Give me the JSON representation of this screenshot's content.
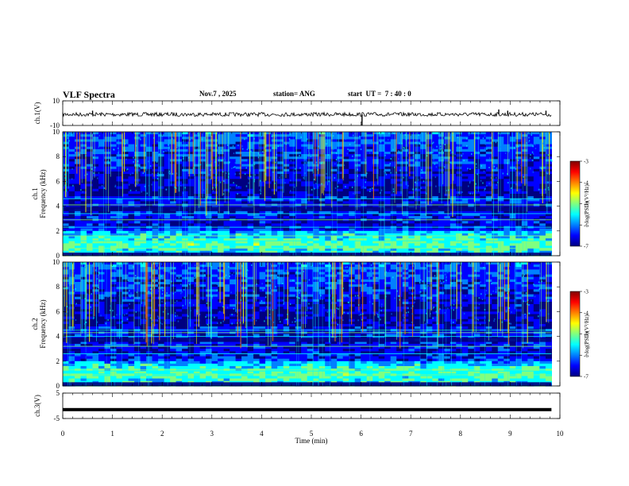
{
  "header": {
    "title": "VLF Spectra",
    "date": "Nov.7 , 2025",
    "station": "station= ANG",
    "start": "start  UT =  7 : 40 : 0"
  },
  "colors": {
    "jet": [
      "#000080",
      "#0000ff",
      "#0080ff",
      "#00ffff",
      "#80ff80",
      "#ffff00",
      "#ff8000",
      "#ff0000",
      "#800000"
    ],
    "background": "#00004a",
    "trace": "#000000"
  },
  "chart_data": [
    {
      "type": "line",
      "name": "ch1-waveform",
      "ylabel": "ch.1(V)",
      "ylim": [
        -10,
        10
      ],
      "yticks": [
        "10",
        "-10"
      ],
      "baseline": -1,
      "spikes": [
        {
          "t": 0.6,
          "v": 2
        },
        {
          "t": 6.02,
          "v": -10
        },
        {
          "t": 8.77,
          "v": 3
        },
        {
          "t": 8.95,
          "v": 2
        },
        {
          "t": 9.72,
          "v": 2
        }
      ]
    },
    {
      "type": "heatmap",
      "name": "ch1-spectrogram",
      "ylabel": "ch.1\nFrequency (kHz)",
      "xlim": [
        0,
        9.83
      ],
      "ylim": [
        0,
        10
      ],
      "yticks": [
        "0",
        "2",
        "4",
        "6",
        "8",
        "10"
      ],
      "bright_lines_khz": [
        0.6,
        1.2,
        1.6,
        2.3,
        2.9,
        3.4,
        4.1,
        4.6
      ],
      "dark_bands_khz": [
        [
          0,
          0.25
        ],
        [
          3.6,
          3.95
        ]
      ],
      "colorbar": {
        "label": "log(PSD)(V²/Hz)",
        "range": [
          -7,
          -3
        ],
        "ticks": [
          "-3",
          "-4",
          "-5",
          "-6",
          "-7"
        ]
      }
    },
    {
      "type": "heatmap",
      "name": "ch2-spectrogram",
      "ylabel": "ch.2\nFrequency (kHz)",
      "xlim": [
        0,
        9.83
      ],
      "ylim": [
        0,
        10
      ],
      "yticks": [
        "0",
        "2",
        "4",
        "6",
        "8",
        "10"
      ],
      "bright_lines_khz": [
        0.9,
        1.2,
        1.3,
        2.6,
        3.2,
        4.0,
        4.3,
        4.5
      ],
      "dark_bands_khz": [
        [
          0,
          0.3
        ],
        [
          3.55,
          3.9
        ]
      ],
      "colorbar": {
        "label": "log(PSD)(V²/Hz)",
        "range": [
          -7,
          -3
        ],
        "ticks": [
          "-3",
          "-4",
          "-5",
          "-6",
          "-7"
        ]
      }
    },
    {
      "type": "line",
      "name": "ch3-waveform",
      "ylabel": "ch.3(V)",
      "ylim": [
        -5,
        5
      ],
      "yticks": [
        "5",
        "-5"
      ],
      "baseline": -1.5
    }
  ],
  "x_axis": {
    "label": "Time  (min)",
    "range": [
      0,
      10
    ],
    "ticks": [
      "0",
      "1",
      "2",
      "3",
      "4",
      "5",
      "6",
      "7",
      "8",
      "9",
      "10"
    ]
  }
}
